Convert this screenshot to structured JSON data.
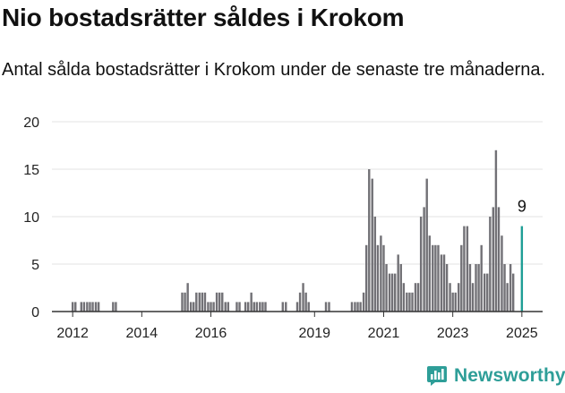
{
  "header": {
    "title": "Nio bostadsrätter såldes i Krokom",
    "subtitle": "Antal sålda bostadsrätter i Krokom under de senaste tre månaderna."
  },
  "brand": {
    "name": "Newsworthy",
    "logo_icon": "newsworthy-logo-icon"
  },
  "colors": {
    "bar": "#727176",
    "highlight": "#1f9e96",
    "grid": "#e3e3e3",
    "axis": "#333333",
    "brand": "#2e9e98"
  },
  "chart_data": {
    "type": "bar",
    "title": "",
    "xlabel": "",
    "ylabel": "",
    "ylim": [
      0,
      20
    ],
    "y_ticks": [
      0,
      5,
      10,
      15,
      20
    ],
    "x_ticks": [
      {
        "value": 2012.0,
        "label": "2012"
      },
      {
        "value": 2014.0,
        "label": "2014"
      },
      {
        "value": 2016.0,
        "label": "2016"
      },
      {
        "value": 2019.0,
        "label": "2019"
      },
      {
        "value": 2021.0,
        "label": "2021"
      },
      {
        "value": 2023.0,
        "label": "2023"
      },
      {
        "value": 2025.0,
        "label": "2025"
      }
    ],
    "x_range": [
      2011.4,
      2025.6
    ],
    "grid": true,
    "annotation": {
      "label": "9",
      "x": 2025.0,
      "y": 9
    },
    "bars": [
      {
        "x": 2011.42,
        "y": 0
      },
      {
        "x": 2011.5,
        "y": 0
      },
      {
        "x": 2011.58,
        "y": 0
      },
      {
        "x": 2011.67,
        "y": 0
      },
      {
        "x": 2011.75,
        "y": 0
      },
      {
        "x": 2011.83,
        "y": 0
      },
      {
        "x": 2011.92,
        "y": 0
      },
      {
        "x": 2012.0,
        "y": 1
      },
      {
        "x": 2012.08,
        "y": 1
      },
      {
        "x": 2012.17,
        "y": 0
      },
      {
        "x": 2012.25,
        "y": 1
      },
      {
        "x": 2012.33,
        "y": 1
      },
      {
        "x": 2012.42,
        "y": 1
      },
      {
        "x": 2012.5,
        "y": 1
      },
      {
        "x": 2012.58,
        "y": 1
      },
      {
        "x": 2012.67,
        "y": 1
      },
      {
        "x": 2012.75,
        "y": 1
      },
      {
        "x": 2012.83,
        "y": 0
      },
      {
        "x": 2012.92,
        "y": 0
      },
      {
        "x": 2013.0,
        "y": 0
      },
      {
        "x": 2013.08,
        "y": 0
      },
      {
        "x": 2013.17,
        "y": 1
      },
      {
        "x": 2013.25,
        "y": 1
      },
      {
        "x": 2013.33,
        "y": 0
      },
      {
        "x": 2013.42,
        "y": 0
      },
      {
        "x": 2013.5,
        "y": 0
      },
      {
        "x": 2013.58,
        "y": 0
      },
      {
        "x": 2013.67,
        "y": 0
      },
      {
        "x": 2013.75,
        "y": 0
      },
      {
        "x": 2013.83,
        "y": 0
      },
      {
        "x": 2013.92,
        "y": 0
      },
      {
        "x": 2014.0,
        "y": 0
      },
      {
        "x": 2014.08,
        "y": 0
      },
      {
        "x": 2014.17,
        "y": 0
      },
      {
        "x": 2014.25,
        "y": 0
      },
      {
        "x": 2014.33,
        "y": 0
      },
      {
        "x": 2014.42,
        "y": 0
      },
      {
        "x": 2014.5,
        "y": 0
      },
      {
        "x": 2014.58,
        "y": 0
      },
      {
        "x": 2014.67,
        "y": 0
      },
      {
        "x": 2014.75,
        "y": 0
      },
      {
        "x": 2014.83,
        "y": 0
      },
      {
        "x": 2014.92,
        "y": 0
      },
      {
        "x": 2015.0,
        "y": 0
      },
      {
        "x": 2015.08,
        "y": 0
      },
      {
        "x": 2015.17,
        "y": 2
      },
      {
        "x": 2015.25,
        "y": 2
      },
      {
        "x": 2015.33,
        "y": 3
      },
      {
        "x": 2015.42,
        "y": 1
      },
      {
        "x": 2015.5,
        "y": 1
      },
      {
        "x": 2015.58,
        "y": 2
      },
      {
        "x": 2015.67,
        "y": 2
      },
      {
        "x": 2015.75,
        "y": 2
      },
      {
        "x": 2015.83,
        "y": 2
      },
      {
        "x": 2015.92,
        "y": 1
      },
      {
        "x": 2016.0,
        "y": 1
      },
      {
        "x": 2016.08,
        "y": 1
      },
      {
        "x": 2016.17,
        "y": 2
      },
      {
        "x": 2016.25,
        "y": 2
      },
      {
        "x": 2016.33,
        "y": 2
      },
      {
        "x": 2016.42,
        "y": 1
      },
      {
        "x": 2016.5,
        "y": 1
      },
      {
        "x": 2016.58,
        "y": 0
      },
      {
        "x": 2016.67,
        "y": 0
      },
      {
        "x": 2016.75,
        "y": 1
      },
      {
        "x": 2016.83,
        "y": 1
      },
      {
        "x": 2016.92,
        "y": 0
      },
      {
        "x": 2017.0,
        "y": 1
      },
      {
        "x": 2017.08,
        "y": 1
      },
      {
        "x": 2017.17,
        "y": 2
      },
      {
        "x": 2017.25,
        "y": 1
      },
      {
        "x": 2017.33,
        "y": 1
      },
      {
        "x": 2017.42,
        "y": 1
      },
      {
        "x": 2017.5,
        "y": 1
      },
      {
        "x": 2017.58,
        "y": 1
      },
      {
        "x": 2017.67,
        "y": 0
      },
      {
        "x": 2017.75,
        "y": 0
      },
      {
        "x": 2017.83,
        "y": 0
      },
      {
        "x": 2017.92,
        "y": 0
      },
      {
        "x": 2018.0,
        "y": 0
      },
      {
        "x": 2018.08,
        "y": 1
      },
      {
        "x": 2018.17,
        "y": 1
      },
      {
        "x": 2018.25,
        "y": 0
      },
      {
        "x": 2018.33,
        "y": 0
      },
      {
        "x": 2018.42,
        "y": 0
      },
      {
        "x": 2018.5,
        "y": 1
      },
      {
        "x": 2018.58,
        "y": 2
      },
      {
        "x": 2018.67,
        "y": 3
      },
      {
        "x": 2018.75,
        "y": 2
      },
      {
        "x": 2018.83,
        "y": 1
      },
      {
        "x": 2018.92,
        "y": 0
      },
      {
        "x": 2019.0,
        "y": 0
      },
      {
        "x": 2019.08,
        "y": 0
      },
      {
        "x": 2019.17,
        "y": 0
      },
      {
        "x": 2019.25,
        "y": 0
      },
      {
        "x": 2019.33,
        "y": 1
      },
      {
        "x": 2019.42,
        "y": 1
      },
      {
        "x": 2019.5,
        "y": 0
      },
      {
        "x": 2019.58,
        "y": 0
      },
      {
        "x": 2019.67,
        "y": 0
      },
      {
        "x": 2019.75,
        "y": 0
      },
      {
        "x": 2019.83,
        "y": 0
      },
      {
        "x": 2019.92,
        "y": 0
      },
      {
        "x": 2020.0,
        "y": 0
      },
      {
        "x": 2020.08,
        "y": 1
      },
      {
        "x": 2020.17,
        "y": 1
      },
      {
        "x": 2020.25,
        "y": 1
      },
      {
        "x": 2020.33,
        "y": 1
      },
      {
        "x": 2020.42,
        "y": 2
      },
      {
        "x": 2020.5,
        "y": 7
      },
      {
        "x": 2020.58,
        "y": 15
      },
      {
        "x": 2020.67,
        "y": 14
      },
      {
        "x": 2020.75,
        "y": 10
      },
      {
        "x": 2020.83,
        "y": 7
      },
      {
        "x": 2020.92,
        "y": 8
      },
      {
        "x": 2021.0,
        "y": 7
      },
      {
        "x": 2021.08,
        "y": 5
      },
      {
        "x": 2021.17,
        "y": 4
      },
      {
        "x": 2021.25,
        "y": 4
      },
      {
        "x": 2021.33,
        "y": 4
      },
      {
        "x": 2021.42,
        "y": 6
      },
      {
        "x": 2021.5,
        "y": 5
      },
      {
        "x": 2021.58,
        "y": 3
      },
      {
        "x": 2021.67,
        "y": 2
      },
      {
        "x": 2021.75,
        "y": 2
      },
      {
        "x": 2021.83,
        "y": 2
      },
      {
        "x": 2021.92,
        "y": 3
      },
      {
        "x": 2022.0,
        "y": 3
      },
      {
        "x": 2022.08,
        "y": 10
      },
      {
        "x": 2022.17,
        "y": 11
      },
      {
        "x": 2022.25,
        "y": 14
      },
      {
        "x": 2022.33,
        "y": 8
      },
      {
        "x": 2022.42,
        "y": 7
      },
      {
        "x": 2022.5,
        "y": 7
      },
      {
        "x": 2022.58,
        "y": 7
      },
      {
        "x": 2022.67,
        "y": 6
      },
      {
        "x": 2022.75,
        "y": 6
      },
      {
        "x": 2022.83,
        "y": 5
      },
      {
        "x": 2022.92,
        "y": 3
      },
      {
        "x": 2023.0,
        "y": 2
      },
      {
        "x": 2023.08,
        "y": 2
      },
      {
        "x": 2023.17,
        "y": 3
      },
      {
        "x": 2023.25,
        "y": 7
      },
      {
        "x": 2023.33,
        "y": 9
      },
      {
        "x": 2023.42,
        "y": 9
      },
      {
        "x": 2023.5,
        "y": 5
      },
      {
        "x": 2023.58,
        "y": 3
      },
      {
        "x": 2023.67,
        "y": 5
      },
      {
        "x": 2023.75,
        "y": 5
      },
      {
        "x": 2023.83,
        "y": 7
      },
      {
        "x": 2023.92,
        "y": 4
      },
      {
        "x": 2024.0,
        "y": 4
      },
      {
        "x": 2024.08,
        "y": 10
      },
      {
        "x": 2024.17,
        "y": 11
      },
      {
        "x": 2024.25,
        "y": 17
      },
      {
        "x": 2024.33,
        "y": 11
      },
      {
        "x": 2024.42,
        "y": 8
      },
      {
        "x": 2024.5,
        "y": 5
      },
      {
        "x": 2024.58,
        "y": 3
      },
      {
        "x": 2024.67,
        "y": 5
      },
      {
        "x": 2024.75,
        "y": 4
      },
      {
        "x": 2024.83,
        "y": 0
      },
      {
        "x": 2025.0,
        "y": 9,
        "highlight": true
      }
    ]
  }
}
